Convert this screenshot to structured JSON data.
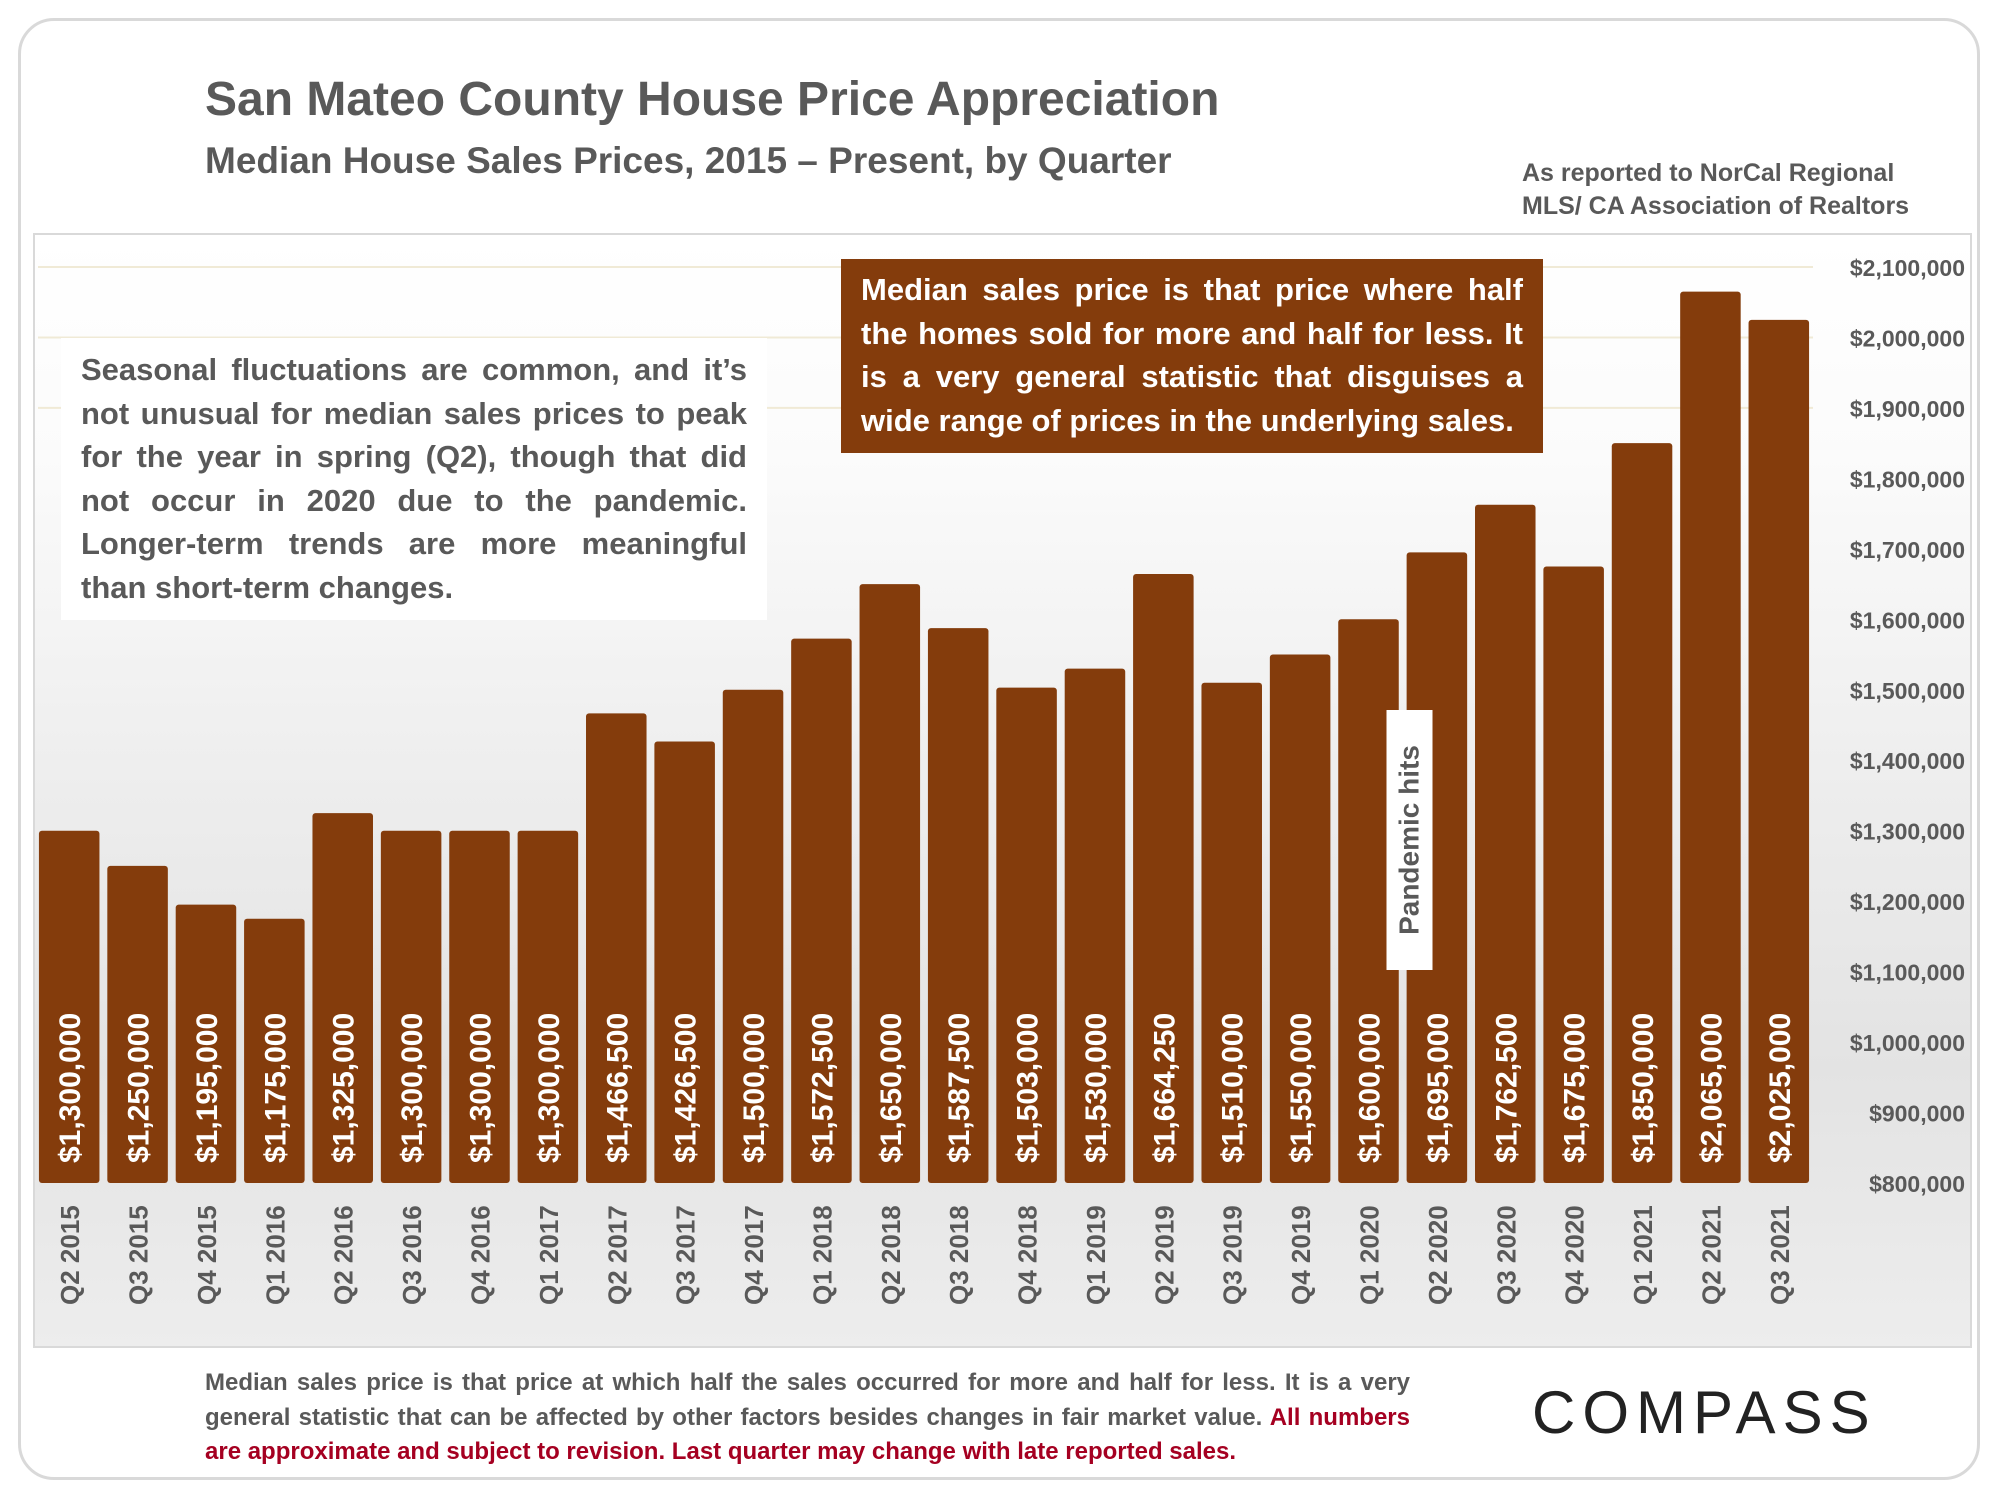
{
  "header": {
    "title": "San Mateo County House Price Appreciation",
    "subtitle": "Median House Sales Prices, 2015 – Present, by Quarter",
    "source_line1": "As reported to NorCal Regional",
    "source_line2": "MLS/ CA Association of Realtors"
  },
  "notes": {
    "left": "Seasonal fluctuations are common, and it’s not unusual for median sales prices to peak for the year in spring (Q2), though that did not occur in 2020 due to the pandemic. Longer-term trends are more meaningful than short-term changes.",
    "right": "Median sales price is that price where half the homes sold for more and half for less. It is a very general statistic that disguises a wide range of prices in the underlying sales."
  },
  "footer": {
    "text_a": "Median sales price is that price at which half the sales occurred for more and half for less.",
    "text_b": " It is a very general statistic that can be affected by other factors besides changes in fair market value. ",
    "text_c": "All numbers are approximate and subject to revision. Last quarter may change with late reported sales.",
    "logo": "COMPASS"
  },
  "colors": {
    "bar": "#843c0c",
    "text": "#595959",
    "disclaimer": "#a50021"
  },
  "chart_data": {
    "type": "bar",
    "title": "San Mateo County House Price Appreciation",
    "subtitle": "Median House Sales Prices, 2015 – Present, by Quarter",
    "categories": [
      "Q2 2015",
      "Q3 2015",
      "Q4 2015",
      "Q1 2016",
      "Q2 2016",
      "Q3 2016",
      "Q4 2016",
      "Q1 2017",
      "Q2 2017",
      "Q3 2017",
      "Q4 2017",
      "Q1 2018",
      "Q2 2018",
      "Q3 2018",
      "Q4 2018",
      "Q1 2019",
      "Q2 2019",
      "Q3 2019",
      "Q4 2019",
      "Q1 2020",
      "Q2 2020",
      "Q3 2020",
      "Q4 2020",
      "Q1 2021",
      "Q2 2021",
      "Q3 2021"
    ],
    "values": [
      1300000,
      1250000,
      1195000,
      1175000,
      1325000,
      1300000,
      1300000,
      1300000,
      1466500,
      1426500,
      1500000,
      1572500,
      1650000,
      1587500,
      1503000,
      1530000,
      1664250,
      1510000,
      1550000,
      1600000,
      1695000,
      1762500,
      1675000,
      1850000,
      2065000,
      2025000
    ],
    "data_labels": [
      "$1,300,000",
      "$1,250,000",
      "$1,195,000",
      "$1,175,000",
      "$1,325,000",
      "$1,300,000",
      "$1,300,000",
      "$1,300,000",
      "$1,466,500",
      "$1,426,500",
      "$1,500,000",
      "$1,572,500",
      "$1,650,000",
      "$1,587,500",
      "$1,503,000",
      "$1,530,000",
      "$1,664,250",
      "$1,510,000",
      "$1,550,000",
      "$1,600,000",
      "$1,695,000",
      "$1,762,500",
      "$1,675,000",
      "$1,850,000",
      "$2,065,000",
      "$2,025,000"
    ],
    "ylim": [
      800000,
      2100000
    ],
    "y_ticks": [
      800000,
      900000,
      1000000,
      1100000,
      1200000,
      1300000,
      1400000,
      1500000,
      1600000,
      1700000,
      1800000,
      1900000,
      2000000,
      2100000
    ],
    "y_tick_labels": [
      "$800,000",
      "$900,000",
      "$1,000,000",
      "$1,100,000",
      "$1,200,000",
      "$1,300,000",
      "$1,400,000",
      "$1,500,000",
      "$1,600,000",
      "$1,700,000",
      "$1,800,000",
      "$1,900,000",
      "$2,000,000",
      "$2,100,000"
    ],
    "y_axis_side": "right",
    "annotations": [
      {
        "text": "Pandemic hits",
        "category": "Q1 2020"
      }
    ],
    "grid": false,
    "legend": "none"
  }
}
